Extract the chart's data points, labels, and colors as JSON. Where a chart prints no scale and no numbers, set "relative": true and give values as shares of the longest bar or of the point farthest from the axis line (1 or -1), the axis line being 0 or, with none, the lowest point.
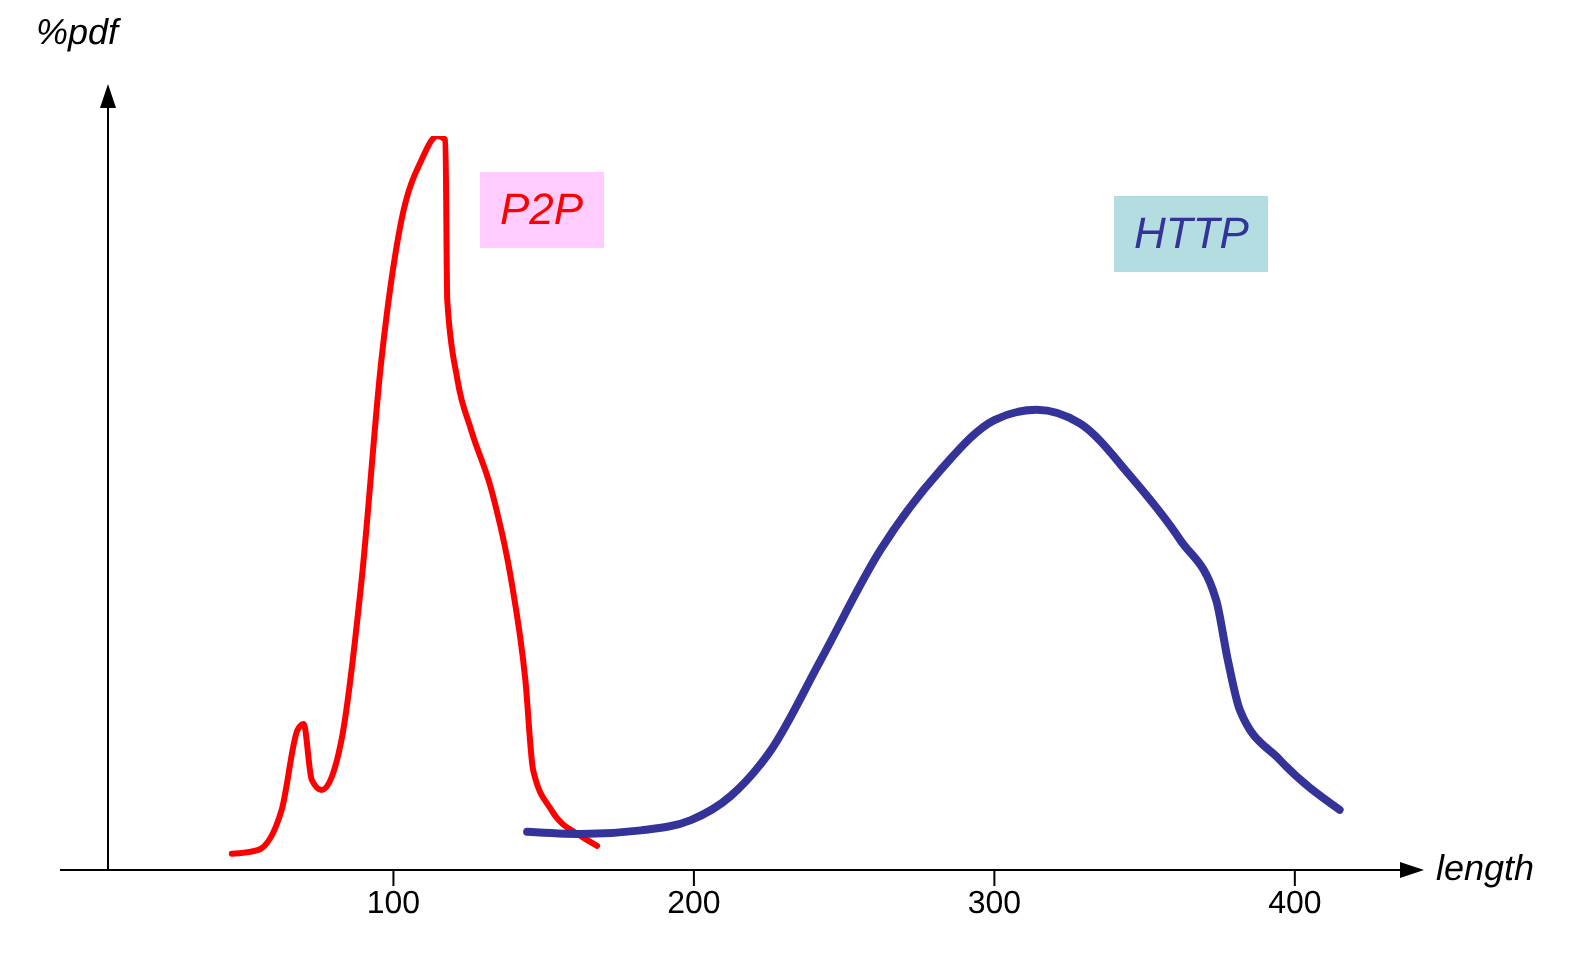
{
  "chart_data": {
    "type": "line",
    "relative": true,
    "xlabel": "length",
    "ylabel": "%pdf",
    "xlim": [
      5,
      435
    ],
    "xticks": [
      100,
      200,
      300,
      400
    ],
    "grid": false,
    "legend": false,
    "marker": "none",
    "line_style": "solid",
    "series": [
      {
        "name": "P2P",
        "color": "#ff0000",
        "x": [
          46.2,
          54.8,
          62.8,
          68.1,
          70.1,
          72.8,
          76.1,
          82.7,
          89.4,
          96.0,
          102.7,
          109.3,
          114.6,
          117.3,
          117.9,
          121.3,
          125.9,
          132.6,
          139.2,
          143.9,
          146.5,
          152.5,
          162.5,
          167.8
        ],
        "values": [
          0.022,
          0.027,
          0.082,
          0.191,
          0.199,
          0.123,
          0.109,
          0.177,
          0.395,
          0.695,
          0.886,
          0.967,
          1,
          0.995,
          0.777,
          0.668,
          0.599,
          0.518,
          0.395,
          0.259,
          0.136,
          0.082,
          0.046,
          0.033
        ]
      },
      {
        "name": "HTTP",
        "color": "#333399",
        "x": [
          144.5,
          162.5,
          182.4,
          199.0,
          212.3,
          225.6,
          242.2,
          262.1,
          282.1,
          300.0,
          314.0,
          328.6,
          345.2,
          361.8,
          373.8,
          377.7,
          381.7,
          395.0,
          414.9
        ],
        "values": [
          0.052,
          0.049,
          0.054,
          0.068,
          0.101,
          0.163,
          0.286,
          0.436,
          0.545,
          0.613,
          0.627,
          0.608,
          0.537,
          0.45,
          0.368,
          0.286,
          0.218,
          0.15,
          0.082
        ]
      }
    ]
  }
}
